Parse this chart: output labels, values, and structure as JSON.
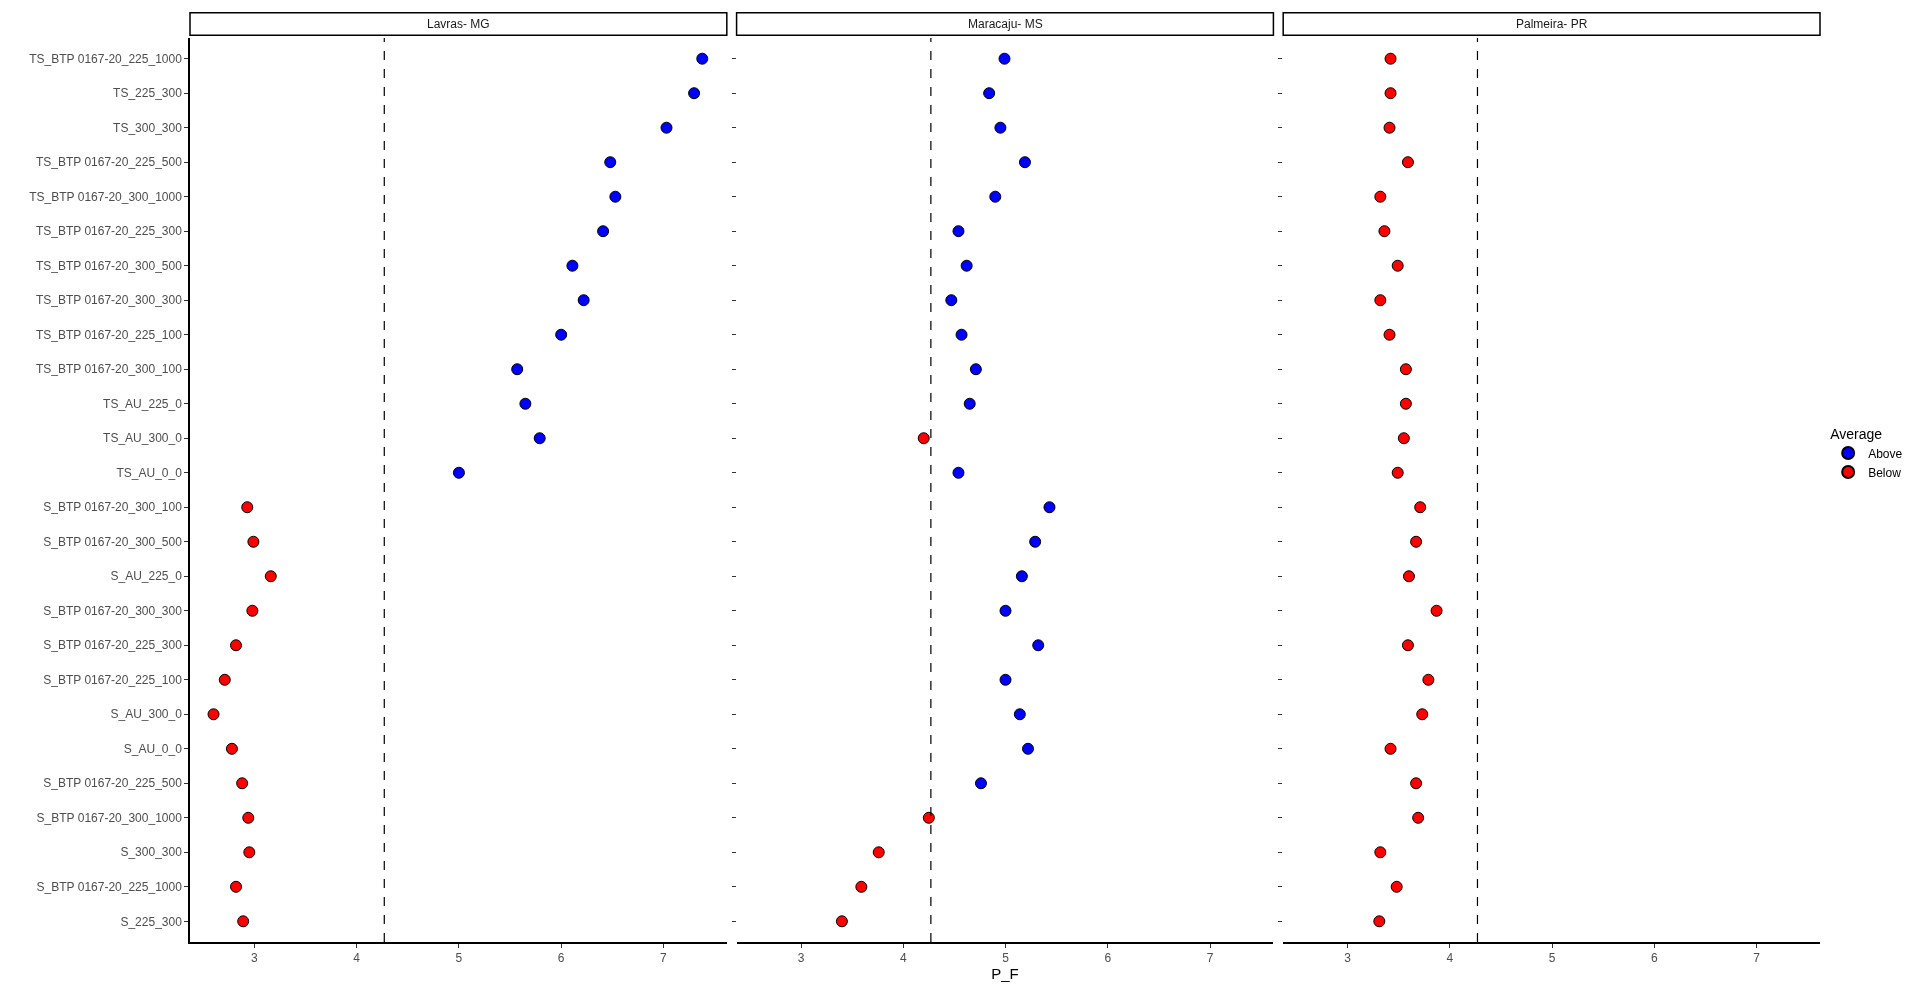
{
  "chart_data": [
    {
      "type": "scatter",
      "orientation": "horizontal",
      "title": "Lavras- MG",
      "marker": "circle",
      "categories": [
        "TS_BTP 0167-20_225_1000",
        "TS_225_300",
        "TS_300_300",
        "TS_BTP 0167-20_225_500",
        "TS_BTP 0167-20_300_1000",
        "TS_BTP 0167-20_225_300",
        "TS_BTP 0167-20_300_500",
        "TS_BTP 0167-20_300_300",
        "TS_BTP 0167-20_225_100",
        "TS_BTP 0167-20_300_100",
        "TS_AU_225_0",
        "TS_AU_300_0",
        "TS_AU_0_0",
        "S_BTP 0167-20_300_100",
        "S_BTP 0167-20_300_500",
        "S_AU_225_0",
        "S_BTP 0167-20_300_300",
        "S_BTP 0167-20_225_300",
        "S_BTP 0167-20_225_100",
        "S_AU_300_0",
        "S_AU_0_0",
        "S_BTP 0167-20_225_500",
        "S_BTP 0167-20_300_1000",
        "S_300_300",
        "S_BTP 0167-20_225_1000",
        "S_225_300"
      ],
      "series": [
        {
          "color": "#0000ff",
          "values": [
            7.38,
            7.3,
            7.03,
            6.48,
            6.53,
            6.41,
            6.11,
            6.22,
            6.0,
            5.57,
            5.65,
            5.79,
            5.0,
            null,
            null,
            null,
            null,
            null,
            null,
            null,
            null,
            null,
            null,
            null,
            null,
            null
          ]
        },
        {
          "color": "#ff0000",
          "values": [
            null,
            null,
            null,
            null,
            null,
            null,
            null,
            null,
            null,
            null,
            null,
            null,
            null,
            2.93,
            2.99,
            3.16,
            2.98,
            2.82,
            2.71,
            2.6,
            2.78,
            2.88,
            2.94,
            2.95,
            2.82,
            2.89
          ]
        }
      ],
      "xlim": [
        2.37,
        7.62
      ],
      "xticks": [
        3,
        4,
        5,
        6,
        7
      ],
      "ref_lines": [
        {
          "axis": "x",
          "value": 4.27,
          "line_style": "dashed",
          "color": "#000000"
        }
      ]
    },
    {
      "type": "scatter",
      "orientation": "horizontal",
      "title": "Maracaju- MS",
      "xlabel": "P_F",
      "marker": "circle",
      "tick_labels": "x",
      "categories": [
        "TS_BTP 0167-20_225_1000",
        "TS_225_300",
        "TS_300_300",
        "TS_BTP 0167-20_225_500",
        "TS_BTP 0167-20_300_1000",
        "TS_BTP 0167-20_225_300",
        "TS_BTP 0167-20_300_500",
        "TS_BTP 0167-20_300_300",
        "TS_BTP 0167-20_225_100",
        "TS_BTP 0167-20_300_100",
        "TS_AU_225_0",
        "TS_AU_300_0",
        "TS_AU_0_0",
        "S_BTP 0167-20_300_100",
        "S_BTP 0167-20_300_500",
        "S_AU_225_0",
        "S_BTP 0167-20_300_300",
        "S_BTP 0167-20_225_300",
        "S_BTP 0167-20_225_100",
        "S_AU_300_0",
        "S_AU_0_0",
        "S_BTP 0167-20_225_500",
        "S_BTP 0167-20_300_1000",
        "S_300_300",
        "S_BTP 0167-20_225_1000",
        "S_225_300"
      ],
      "series": [
        {
          "color": "#0000ff",
          "values": [
            4.99,
            4.84,
            4.95,
            5.19,
            4.9,
            4.54,
            4.62,
            4.47,
            4.57,
            4.71,
            4.65,
            null,
            4.54,
            5.43,
            5.29,
            5.16,
            5.0,
            5.32,
            5.0,
            5.14,
            5.22,
            4.76,
            null,
            null,
            null,
            null
          ]
        },
        {
          "color": "#ff0000",
          "values": [
            null,
            null,
            null,
            null,
            null,
            null,
            null,
            null,
            null,
            null,
            null,
            4.2,
            null,
            null,
            null,
            null,
            null,
            null,
            null,
            null,
            null,
            null,
            4.25,
            3.76,
            3.59,
            3.4
          ]
        }
      ],
      "xlim": [
        2.37,
        7.62
      ],
      "xticks": [
        3,
        4,
        5,
        6,
        7
      ],
      "ref_lines": [
        {
          "axis": "x",
          "value": 4.27,
          "line_style": "dashed",
          "color": "#000000"
        }
      ]
    },
    {
      "type": "scatter",
      "orientation": "horizontal",
      "title": "Palmeira- PR",
      "marker": "circle",
      "tick_labels": "x",
      "legend": "right",
      "legend_title": "Average",
      "categories": [
        "TS_BTP 0167-20_225_1000",
        "TS_225_300",
        "TS_300_300",
        "TS_BTP 0167-20_225_500",
        "TS_BTP 0167-20_300_1000",
        "TS_BTP 0167-20_225_300",
        "TS_BTP 0167-20_300_500",
        "TS_BTP 0167-20_300_300",
        "TS_BTP 0167-20_225_100",
        "TS_BTP 0167-20_300_100",
        "TS_AU_225_0",
        "TS_AU_300_0",
        "TS_AU_0_0",
        "S_BTP 0167-20_300_100",
        "S_BTP 0167-20_300_500",
        "S_AU_225_0",
        "S_BTP 0167-20_300_300",
        "S_BTP 0167-20_225_300",
        "S_BTP 0167-20_225_100",
        "S_AU_300_0",
        "S_AU_0_0",
        "S_BTP 0167-20_225_500",
        "S_BTP 0167-20_300_1000",
        "S_300_300",
        "S_BTP 0167-20_225_1000",
        "S_225_300"
      ],
      "series": [
        {
          "name": "Above",
          "color": "#0000ff",
          "values": [
            null,
            null,
            null,
            null,
            null,
            null,
            null,
            null,
            null,
            null,
            null,
            null,
            null,
            null,
            null,
            null,
            null,
            null,
            null,
            null,
            null,
            null,
            null,
            null,
            null,
            null
          ]
        },
        {
          "name": "Below",
          "color": "#ff0000",
          "values": [
            3.42,
            3.42,
            3.41,
            3.59,
            3.32,
            3.36,
            3.49,
            3.32,
            3.41,
            3.57,
            3.57,
            3.55,
            3.49,
            3.71,
            3.67,
            3.6,
            3.87,
            3.59,
            3.79,
            3.73,
            3.42,
            3.67,
            3.69,
            3.32,
            3.48,
            3.31
          ]
        }
      ],
      "xlim": [
        2.37,
        7.62
      ],
      "xticks": [
        3,
        4,
        5,
        6,
        7
      ],
      "ref_lines": [
        {
          "axis": "x",
          "value": 4.27,
          "line_style": "dashed",
          "color": "#000000"
        }
      ]
    }
  ]
}
